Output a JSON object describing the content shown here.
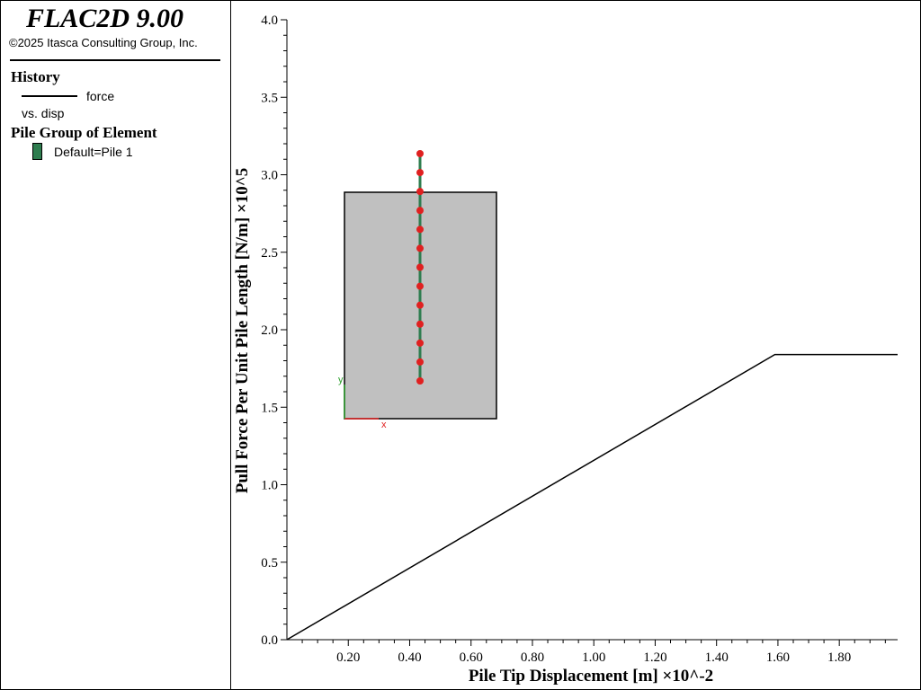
{
  "app": {
    "title": "FLAC2D 9.00",
    "copyright": "©2025 Itasca Consulting Group, Inc."
  },
  "legend": {
    "history_header": "History",
    "history_item": "force",
    "history_sub": "vs. disp",
    "pile_header": "Pile Group of Element",
    "pile_item": "Default=Pile 1",
    "pile_color": "#2e7d4f"
  },
  "chart_data": {
    "type": "line",
    "series": [
      {
        "name": "force",
        "x": [
          0.0,
          1.59,
          1.99
        ],
        "y": [
          0.0,
          1.84,
          1.84
        ],
        "color": "#000000"
      }
    ],
    "xlabel": "Pile Tip Displacement [m]",
    "xscale": "×10^-2",
    "ylabel": "Pull Force Per Unit Pile Length [N/m]",
    "yscale": "×10^5",
    "xlim": [
      0.0,
      1.99
    ],
    "ylim": [
      0.0,
      4.0
    ],
    "xticks": [
      "0.20",
      "0.40",
      "0.60",
      "0.80",
      "1.00",
      "1.20",
      "1.40",
      "1.60",
      "1.80"
    ],
    "yticks": [
      "0.0",
      "0.5",
      "1.0",
      "1.5",
      "2.0",
      "2.5",
      "3.0",
      "3.5",
      "4.0"
    ],
    "inset": {
      "axis_x_label": "x",
      "axis_y_label": "y",
      "box_color": "#c0c0c0",
      "pile_color": "#2e7d4f",
      "node_color": "#e02020",
      "node_count": 13
    }
  }
}
